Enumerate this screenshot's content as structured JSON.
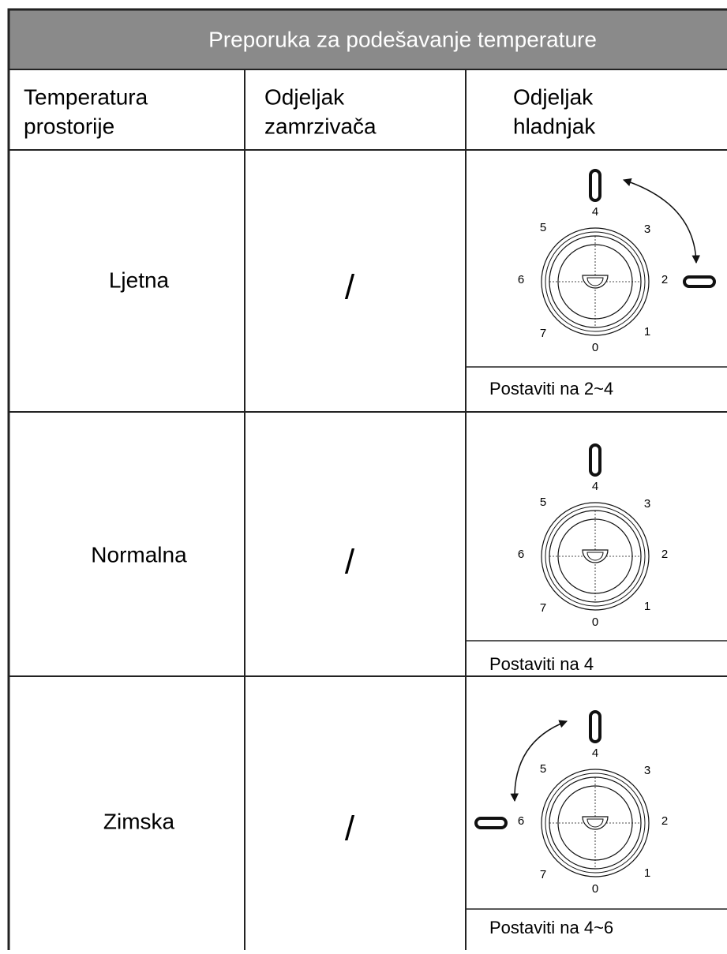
{
  "table": {
    "title": "Preporuka za podešavanje temperature",
    "header": [
      [
        "Temperatura",
        "prostorije"
      ],
      [
        "Odjeljak",
        "zamrzivača"
      ],
      [
        "Odjeljak",
        "hladnjak"
      ]
    ],
    "dial_labels": [
      "0",
      "1",
      "2",
      "3",
      "4",
      "5",
      "6",
      "7"
    ],
    "rows": [
      {
        "room": "Ljetna",
        "freezer": "/",
        "setting": "Postaviti na 2~4"
      },
      {
        "room": "Normalna",
        "freezer": "/",
        "setting": "Postaviti na 4"
      },
      {
        "room": "Zimska",
        "freezer": "/",
        "setting": "Postaviti na 4~6"
      }
    ]
  }
}
